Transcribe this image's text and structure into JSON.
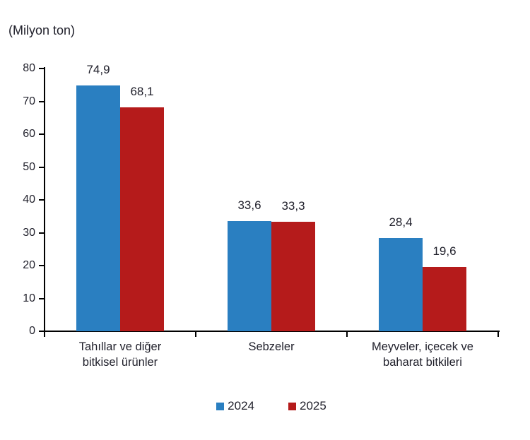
{
  "chart": {
    "unit_label": "(Milyon ton)"
  },
  "chart_data": {
    "type": "bar",
    "title": "(Milyon ton)",
    "categories": [
      "Tahıllar ve diğer\nbitkisel ürünler",
      "Sebzeler",
      "Meyveler, içecek ve\nbaharat bitkileri"
    ],
    "series": [
      {
        "name": "2024",
        "color": "#2A7FC1",
        "values": [
          74.9,
          33.6,
          28.4
        ],
        "labels": [
          "74,9",
          "33,6",
          "28,4"
        ]
      },
      {
        "name": "2025",
        "color": "#B51B1B",
        "values": [
          68.1,
          33.3,
          19.6
        ],
        "labels": [
          "68,1",
          "33,3",
          "19,6"
        ]
      }
    ],
    "xlabel": "",
    "ylabel": "(Milyon ton)",
    "ylim": [
      0,
      80
    ],
    "yticks": [
      0,
      10,
      20,
      30,
      40,
      50,
      60,
      70,
      80
    ],
    "grid": false,
    "legend_position": "bottom",
    "axis_color": "#000000",
    "text_color": "#1f1f2a"
  }
}
